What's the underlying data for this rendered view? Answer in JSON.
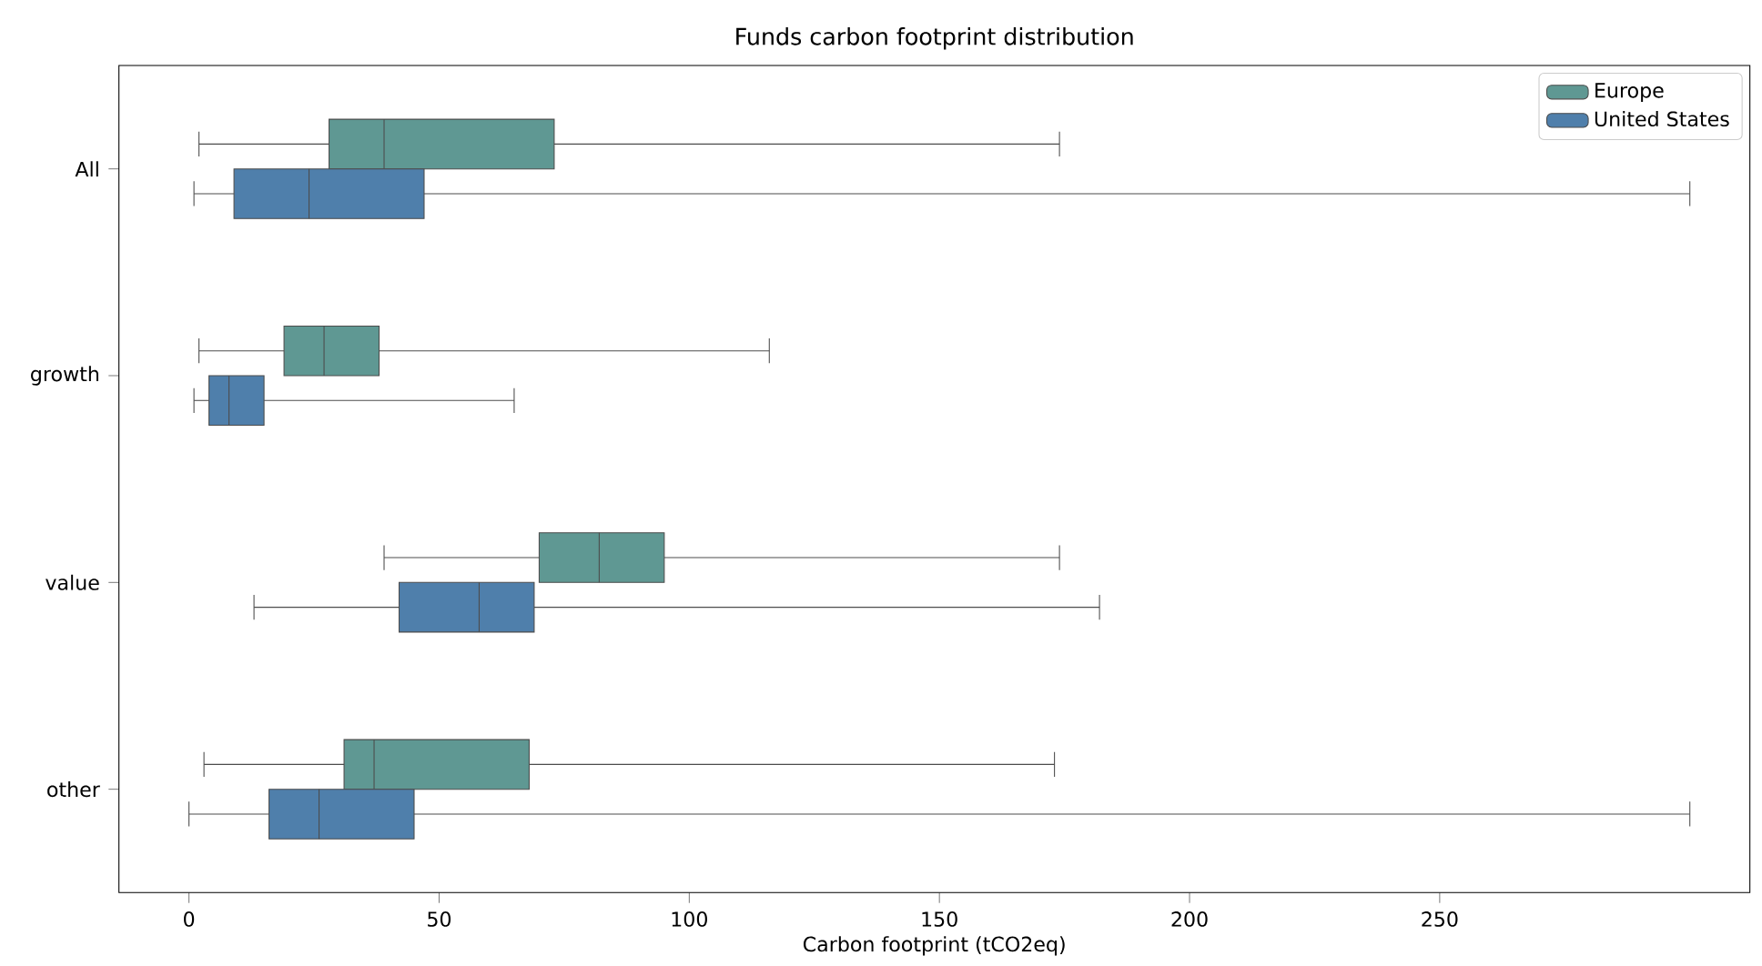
{
  "chart_data": {
    "type": "box",
    "orientation": "horizontal",
    "title": "Funds carbon footprint distribution",
    "xlabel": "Carbon footprint (tCO2eq)",
    "categories": [
      "All",
      "growth",
      "value",
      "other"
    ],
    "series": [
      {
        "name": "Europe",
        "color": "#5f9893",
        "boxes": [
          {
            "low": 2,
            "q1": 28,
            "median": 39,
            "q3": 73,
            "high": 174
          },
          {
            "low": 2,
            "q1": 19,
            "median": 27,
            "q3": 38,
            "high": 116
          },
          {
            "low": 39,
            "q1": 70,
            "median": 82,
            "q3": 95,
            "high": 174
          },
          {
            "low": 3,
            "q1": 31,
            "median": 37,
            "q3": 68,
            "high": 173
          }
        ]
      },
      {
        "name": "United States",
        "color": "#4f7fab",
        "boxes": [
          {
            "low": 1,
            "q1": 9,
            "median": 24,
            "q3": 47,
            "high": 300
          },
          {
            "low": 1,
            "q1": 4,
            "median": 8,
            "q3": 15,
            "high": 65
          },
          {
            "low": 13,
            "q1": 42,
            "median": 58,
            "q3": 69,
            "high": 182
          },
          {
            "low": 0,
            "q1": 16,
            "median": 26,
            "q3": 45,
            "high": 300
          }
        ]
      }
    ],
    "xlim": [
      -14,
      312
    ],
    "xticks": [
      0,
      50,
      100,
      150,
      200,
      250
    ],
    "legend": "top right",
    "grid": false
  }
}
